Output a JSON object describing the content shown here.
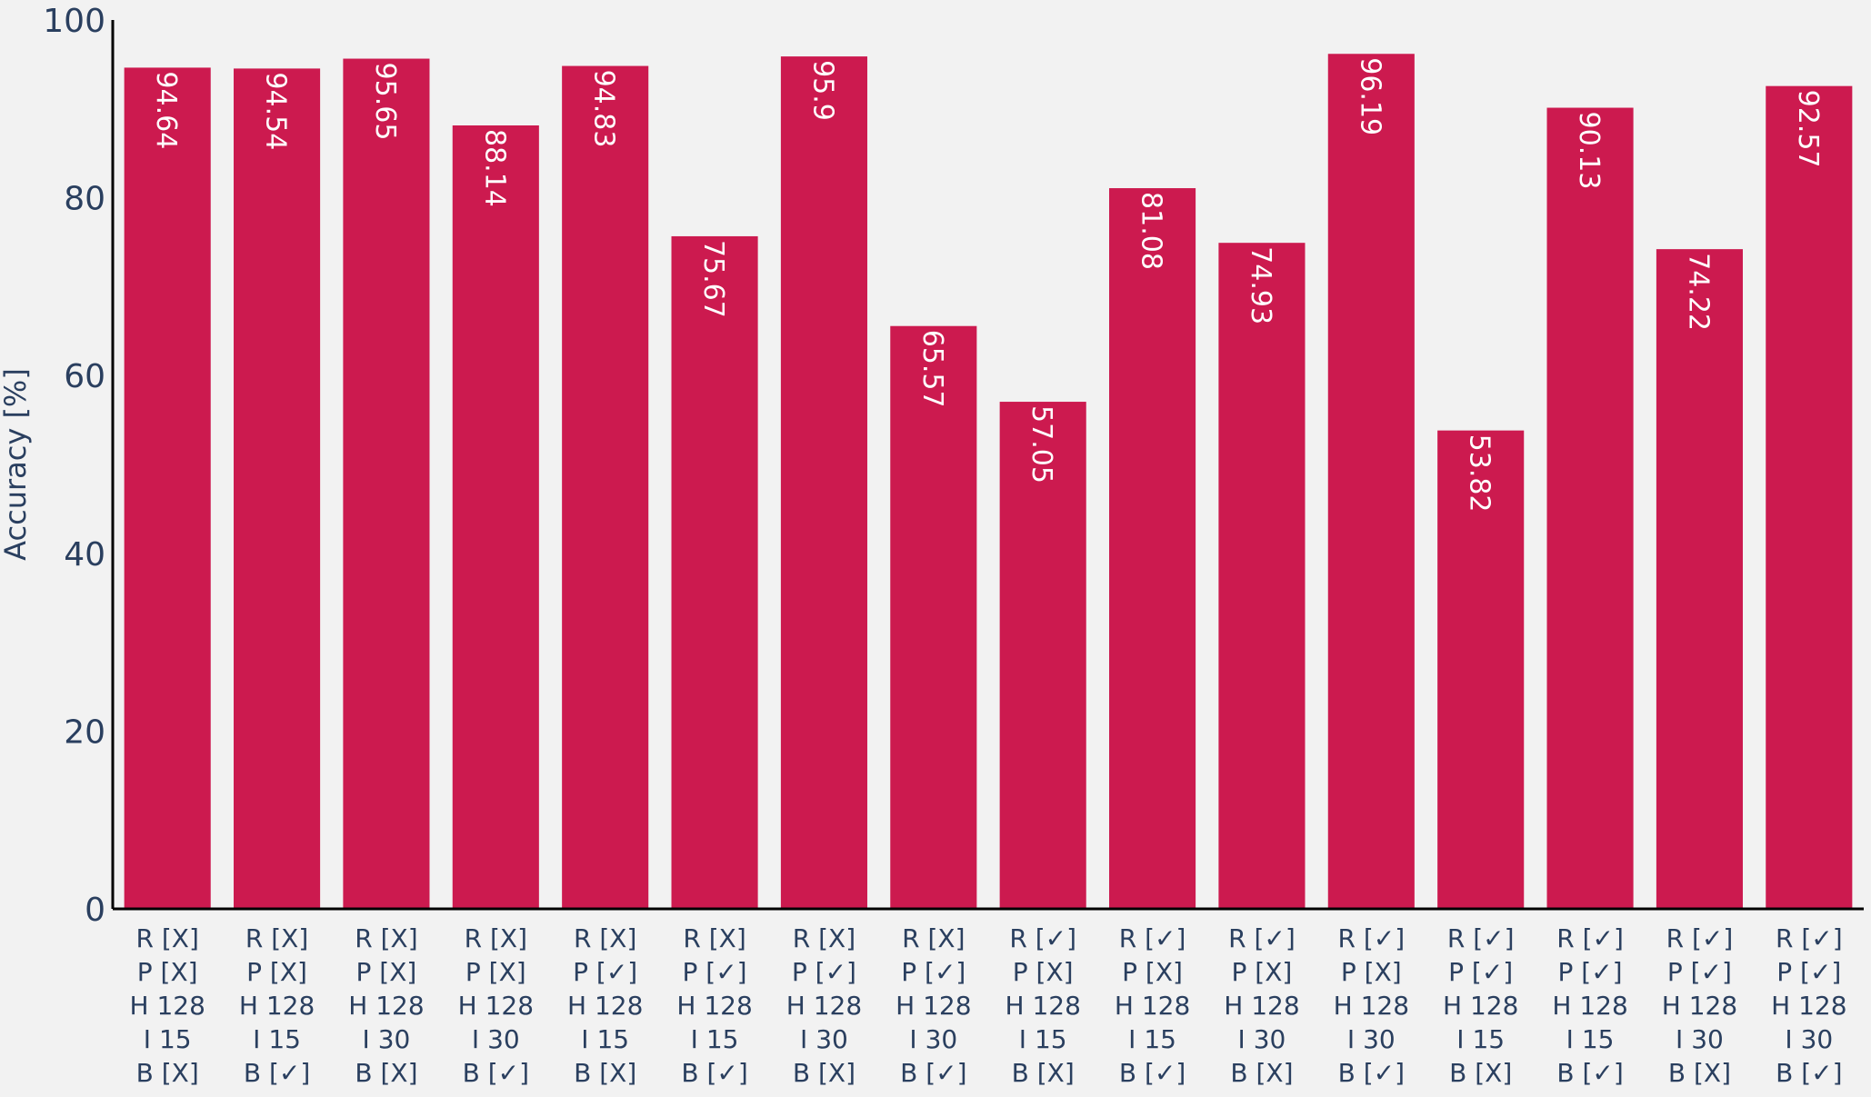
{
  "chart_data": {
    "type": "bar",
    "ylabel": "Accuracy [%]",
    "xlabel": "",
    "ylim": [
      0,
      100
    ],
    "yticks": [
      0,
      20,
      40,
      60,
      80,
      100
    ],
    "bar_color": "#cc1a4f",
    "background_color": "#f2f2f2",
    "grid": false,
    "categories": [
      [
        "R [X]",
        "P [X]",
        "H 128",
        "I 15",
        "B [X]"
      ],
      [
        "R [X]",
        "P [X]",
        "H 128",
        "I 15",
        "B [✓]"
      ],
      [
        "R [X]",
        "P [X]",
        "H 128",
        "I 30",
        "B [X]"
      ],
      [
        "R [X]",
        "P [X]",
        "H 128",
        "I 30",
        "B [✓]"
      ],
      [
        "R [X]",
        "P [✓]",
        "H 128",
        "I 15",
        "B [X]"
      ],
      [
        "R [X]",
        "P [✓]",
        "H 128",
        "I 15",
        "B [✓]"
      ],
      [
        "R [X]",
        "P [✓]",
        "H 128",
        "I 30",
        "B [X]"
      ],
      [
        "R [X]",
        "P [✓]",
        "H 128",
        "I 30",
        "B [✓]"
      ],
      [
        "R [✓]",
        "P [X]",
        "H 128",
        "I 15",
        "B [X]"
      ],
      [
        "R [✓]",
        "P [X]",
        "H 128",
        "I 15",
        "B [✓]"
      ],
      [
        "R [✓]",
        "P [X]",
        "H 128",
        "I 30",
        "B [X]"
      ],
      [
        "R [✓]",
        "P [X]",
        "H 128",
        "I 30",
        "B [✓]"
      ],
      [
        "R [✓]",
        "P [✓]",
        "H 128",
        "I 15",
        "B [X]"
      ],
      [
        "R [✓]",
        "P [✓]",
        "H 128",
        "I 15",
        "B [✓]"
      ],
      [
        "R [✓]",
        "P [✓]",
        "H 128",
        "I 30",
        "B [X]"
      ],
      [
        "R [✓]",
        "P [✓]",
        "H 128",
        "I 30",
        "B [✓]"
      ]
    ],
    "values": [
      94.64,
      94.54,
      95.65,
      88.14,
      94.83,
      75.67,
      95.9,
      65.57,
      57.05,
      81.08,
      74.93,
      96.19,
      53.82,
      90.13,
      74.22,
      92.57
    ],
    "value_labels": [
      "94.64",
      "94.54",
      "95.65",
      "88.14",
      "94.83",
      "75.67",
      "95.9",
      "65.57",
      "57.05",
      "81.08",
      "74.93",
      "96.19",
      "53.82",
      "90.13",
      "74.22",
      "92.57"
    ]
  }
}
